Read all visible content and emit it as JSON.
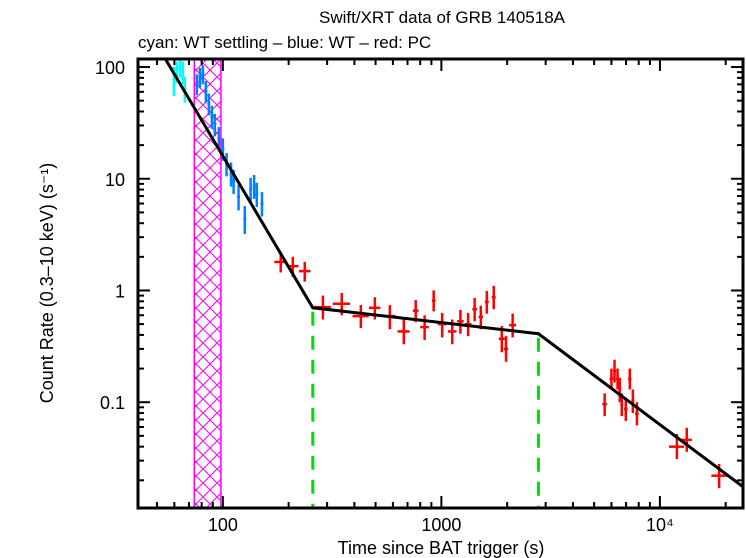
{
  "chart_data": {
    "type": "scatter",
    "title": "Swift/XRT data of GRB 140518A",
    "subtitle": "cyan: WT settling – blue: WT – red: PC",
    "xlabel": "Time since BAT trigger (s)",
    "ylabel": "Count Rate (0.3–10 keV) (s⁻¹)",
    "xscale": "log",
    "yscale": "log",
    "xlim": [
      40.9,
      24000
    ],
    "ylim": [
      0.0113,
      118
    ],
    "grid": false,
    "x_ticks": [
      {
        "value": 100,
        "label": "100"
      },
      {
        "value": 1000,
        "label": "1000"
      },
      {
        "value": 10000,
        "label": "10⁴"
      }
    ],
    "y_ticks": [
      {
        "value": 100,
        "label": "100"
      },
      {
        "value": 10,
        "label": "10"
      },
      {
        "value": 1,
        "label": "1"
      },
      {
        "value": 0.1,
        "label": "0.1"
      }
    ],
    "series": [
      {
        "name": "WT settling",
        "color": "#00ffff",
        "points": [
          {
            "t": 59.7,
            "r": 78,
            "r_lo": 55,
            "r_hi": 100
          },
          {
            "t": 61.6,
            "r": 96,
            "r_lo": 72,
            "r_hi": 112
          },
          {
            "t": 63.6,
            "r": 100,
            "r_lo": 80,
            "r_hi": 115
          },
          {
            "t": 65.6,
            "r": 92,
            "r_lo": 70,
            "r_hi": 112
          },
          {
            "t": 67.0,
            "r": 64,
            "r_lo": 48,
            "r_hi": 82
          }
        ]
      },
      {
        "name": "WT",
        "color": "#0080ff",
        "points": [
          {
            "t": 76.0,
            "r": 70,
            "r_lo": 56,
            "r_hi": 86
          },
          {
            "t": 78.5,
            "r": 81,
            "r_lo": 65,
            "r_hi": 98
          },
          {
            "t": 81.0,
            "r": 87,
            "r_lo": 70,
            "r_hi": 104
          },
          {
            "t": 83.6,
            "r": 61,
            "r_lo": 48,
            "r_hi": 75
          },
          {
            "t": 86.3,
            "r": 47,
            "r_lo": 37,
            "r_hi": 58
          },
          {
            "t": 89.1,
            "r": 36,
            "r_lo": 28,
            "r_hi": 45
          },
          {
            "t": 91.9,
            "r": 31,
            "r_lo": 24,
            "r_hi": 38
          },
          {
            "t": 95.9,
            "r": 23,
            "r_lo": 18,
            "r_hi": 29
          },
          {
            "t": 100,
            "r": 18.5,
            "r_lo": 14.5,
            "r_hi": 23
          },
          {
            "t": 104,
            "r": 13.6,
            "r_lo": 10.5,
            "r_hi": 17
          },
          {
            "t": 109,
            "r": 11.0,
            "r_lo": 8.5,
            "r_hi": 14
          },
          {
            "t": 112,
            "r": 9.5,
            "r_lo": 7.3,
            "r_hi": 12
          },
          {
            "t": 118,
            "r": 6.9,
            "r_lo": 5.2,
            "r_hi": 8.8
          },
          {
            "t": 126,
            "r": 4.4,
            "r_lo": 3.2,
            "r_hi": 5.7
          },
          {
            "t": 134,
            "r": 8.1,
            "r_lo": 6.2,
            "r_hi": 10.2
          },
          {
            "t": 139,
            "r": 8.6,
            "r_lo": 6.6,
            "r_hi": 10.8
          },
          {
            "t": 143,
            "r": 7.3,
            "r_lo": 5.6,
            "r_hi": 9.2
          },
          {
            "t": 151,
            "r": 6.0,
            "r_lo": 4.6,
            "r_hi": 7.6
          }
        ]
      },
      {
        "name": "PC",
        "color": "#ff0000",
        "points": [
          {
            "t": 184,
            "r": 1.8,
            "t_lo": 172,
            "t_hi": 196,
            "r_lo": 1.45,
            "r_hi": 2.2
          },
          {
            "t": 209,
            "r": 1.65,
            "t_lo": 197,
            "t_hi": 222,
            "r_lo": 1.32,
            "r_hi": 2.0
          },
          {
            "t": 237,
            "r": 1.49,
            "t_lo": 223,
            "t_hi": 252,
            "r_lo": 1.2,
            "r_hi": 1.8
          },
          {
            "t": 287,
            "r": 0.71,
            "t_lo": 262,
            "t_hi": 312,
            "r_lo": 0.55,
            "r_hi": 0.9
          },
          {
            "t": 350,
            "r": 0.76,
            "t_lo": 318,
            "t_hi": 382,
            "r_lo": 0.6,
            "r_hi": 0.95
          },
          {
            "t": 428,
            "r": 0.59,
            "t_lo": 392,
            "t_hi": 465,
            "r_lo": 0.46,
            "r_hi": 0.74
          },
          {
            "t": 496,
            "r": 0.7,
            "t_lo": 466,
            "t_hi": 526,
            "r_lo": 0.55,
            "r_hi": 0.87
          },
          {
            "t": 581,
            "r": 0.59,
            "t_lo": 545,
            "t_hi": 617,
            "r_lo": 0.45,
            "r_hi": 0.74
          },
          {
            "t": 673,
            "r": 0.43,
            "t_lo": 630,
            "t_hi": 716,
            "r_lo": 0.33,
            "r_hi": 0.55
          },
          {
            "t": 763,
            "r": 0.66,
            "t_lo": 740,
            "t_hi": 786,
            "r_lo": 0.52,
            "r_hi": 0.82
          },
          {
            "t": 838,
            "r": 0.47,
            "t_lo": 800,
            "t_hi": 876,
            "r_lo": 0.36,
            "r_hi": 0.6
          },
          {
            "t": 922,
            "r": 0.81,
            "t_lo": 905,
            "t_hi": 940,
            "r_lo": 0.65,
            "r_hi": 1.0
          },
          {
            "t": 1008,
            "r": 0.5,
            "t_lo": 962,
            "t_hi": 1054,
            "r_lo": 0.38,
            "r_hi": 0.63
          },
          {
            "t": 1121,
            "r": 0.43,
            "t_lo": 1070,
            "t_hi": 1172,
            "r_lo": 0.33,
            "r_hi": 0.55
          },
          {
            "t": 1222,
            "r": 0.53,
            "t_lo": 1180,
            "t_hi": 1265,
            "r_lo": 0.41,
            "r_hi": 0.67
          },
          {
            "t": 1325,
            "r": 0.5,
            "t_lo": 1280,
            "t_hi": 1370,
            "r_lo": 0.39,
            "r_hi": 0.63
          },
          {
            "t": 1420,
            "r": 0.68,
            "t_lo": 1385,
            "t_hi": 1455,
            "r_lo": 0.53,
            "r_hi": 0.86
          },
          {
            "t": 1515,
            "r": 0.58,
            "t_lo": 1480,
            "t_hi": 1550,
            "r_lo": 0.45,
            "r_hi": 0.73
          },
          {
            "t": 1614,
            "r": 0.79,
            "t_lo": 1580,
            "t_hi": 1648,
            "r_lo": 0.62,
            "r_hi": 0.99
          },
          {
            "t": 1736,
            "r": 0.87,
            "t_lo": 1700,
            "t_hi": 1772,
            "r_lo": 0.68,
            "r_hi": 1.1
          },
          {
            "t": 1890,
            "r": 0.37,
            "t_lo": 1830,
            "t_hi": 1950,
            "r_lo": 0.28,
            "r_hi": 0.48
          },
          {
            "t": 1976,
            "r": 0.3,
            "t_lo": 1930,
            "t_hi": 2022,
            "r_lo": 0.23,
            "r_hi": 0.39
          },
          {
            "t": 2119,
            "r": 0.49,
            "t_lo": 2040,
            "t_hi": 2200,
            "r_lo": 0.38,
            "r_hi": 0.62
          },
          {
            "t": 5586,
            "r": 0.096,
            "t_lo": 5450,
            "t_hi": 5720,
            "r_lo": 0.075,
            "r_hi": 0.12
          },
          {
            "t": 6000,
            "r": 0.162,
            "t_lo": 5880,
            "t_hi": 6120,
            "r_lo": 0.13,
            "r_hi": 0.2
          },
          {
            "t": 6200,
            "r": 0.19,
            "t_lo": 6100,
            "t_hi": 6300,
            "r_lo": 0.15,
            "r_hi": 0.24
          },
          {
            "t": 6400,
            "r": 0.162,
            "t_lo": 6300,
            "t_hi": 6500,
            "r_lo": 0.13,
            "r_hi": 0.2
          },
          {
            "t": 6550,
            "r": 0.13,
            "t_lo": 6450,
            "t_hi": 6650,
            "r_lo": 0.1,
            "r_hi": 0.165
          },
          {
            "t": 6690,
            "r": 0.096,
            "t_lo": 6590,
            "t_hi": 6790,
            "r_lo": 0.075,
            "r_hi": 0.12
          },
          {
            "t": 6980,
            "r": 0.087,
            "t_lo": 6850,
            "t_hi": 7110,
            "r_lo": 0.068,
            "r_hi": 0.11
          },
          {
            "t": 7280,
            "r": 0.162,
            "t_lo": 7150,
            "t_hi": 7410,
            "r_lo": 0.13,
            "r_hi": 0.2
          },
          {
            "t": 7520,
            "r": 0.103,
            "t_lo": 7400,
            "t_hi": 7640,
            "r_lo": 0.08,
            "r_hi": 0.13
          },
          {
            "t": 7850,
            "r": 0.079,
            "t_lo": 7700,
            "t_hi": 8000,
            "r_lo": 0.062,
            "r_hi": 0.1
          },
          {
            "t": 11960,
            "r": 0.04,
            "t_lo": 11000,
            "t_hi": 12900,
            "r_lo": 0.031,
            "r_hi": 0.052
          },
          {
            "t": 13270,
            "r": 0.046,
            "t_lo": 12600,
            "t_hi": 14000,
            "r_lo": 0.036,
            "r_hi": 0.059
          },
          {
            "t": 18660,
            "r": 0.022,
            "t_lo": 17200,
            "t_hi": 20200,
            "r_lo": 0.017,
            "r_hi": 0.028
          }
        ]
      }
    ],
    "model": {
      "name": "broken power-law fit",
      "color": "#000000",
      "vertices": [
        {
          "t": 54.3,
          "r": 120
        },
        {
          "t": 258,
          "r": 0.7
        },
        {
          "t": 2780,
          "r": 0.41
        },
        {
          "t": 24000,
          "r": 0.0175
        }
      ]
    },
    "breaks": {
      "color": "#00dd00",
      "times": [
        258,
        2780
      ]
    },
    "excluded_interval": {
      "color": "#ff00ff",
      "t_start": 74,
      "t_end": 98
    }
  }
}
